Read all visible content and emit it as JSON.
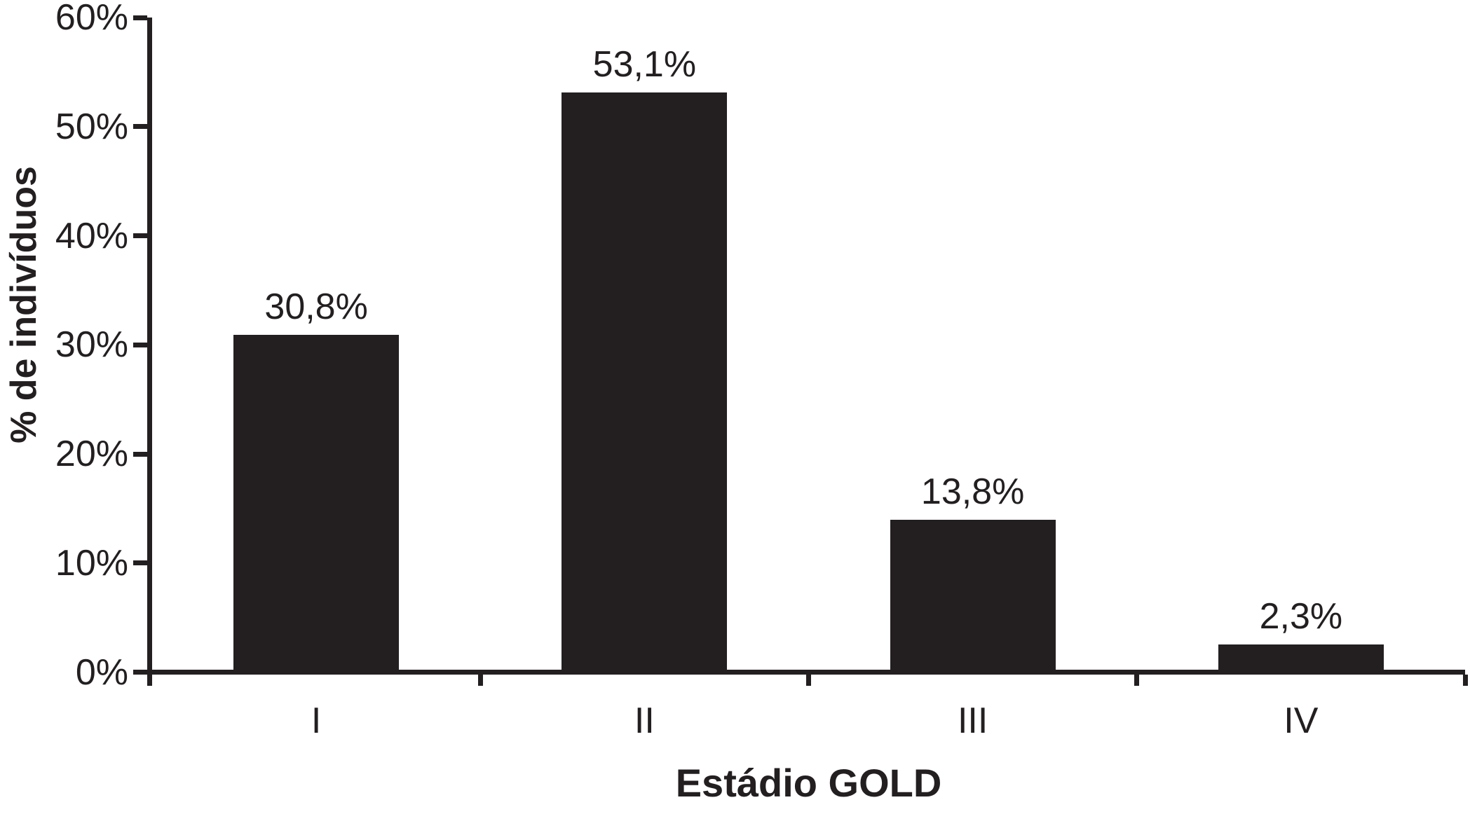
{
  "chart_data": {
    "type": "bar",
    "xlabel": "Estádio GOLD",
    "ylabel": "% de indivíduos",
    "categories": [
      "I",
      "II",
      "III",
      "IV"
    ],
    "values": [
      30.8,
      53.1,
      13.8,
      2.3
    ],
    "value_labels": [
      "30,8%",
      "53,1%",
      "13,8%",
      "2,3%"
    ],
    "ylim": [
      0,
      60
    ],
    "ytick_interval": 10,
    "ytick_labels": [
      "0%",
      "10%",
      "20%",
      "30%",
      "40%",
      "50%",
      "60%"
    ],
    "grid": false,
    "legend": false,
    "colors": {
      "bar": "#231f20",
      "axis": "#231f20",
      "text": "#231f20",
      "background": "#ffffff"
    }
  }
}
